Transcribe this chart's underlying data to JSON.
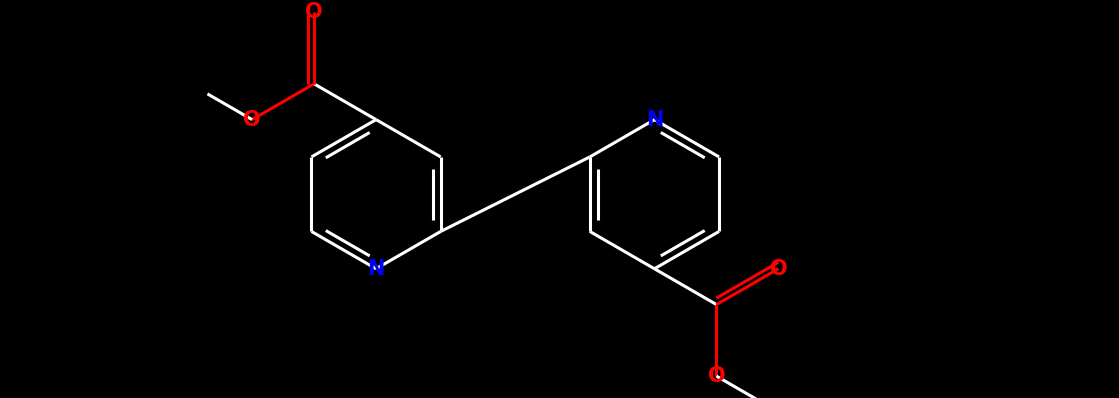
{
  "bg_color": "#000000",
  "bond_color": "#ffffff",
  "n_color": "#0000ff",
  "o_color": "#ff0000",
  "lw": 2.2,
  "lw_thin": 1.8,
  "fs": 15,
  "figsize": [
    11.19,
    3.98
  ],
  "xlim": [
    0,
    11.19
  ],
  "ylim": [
    0,
    3.98
  ],
  "ring_r": 0.75,
  "lcx": 3.8,
  "lcy": 2.0,
  "rcx": 6.55,
  "rcy": 2.0
}
